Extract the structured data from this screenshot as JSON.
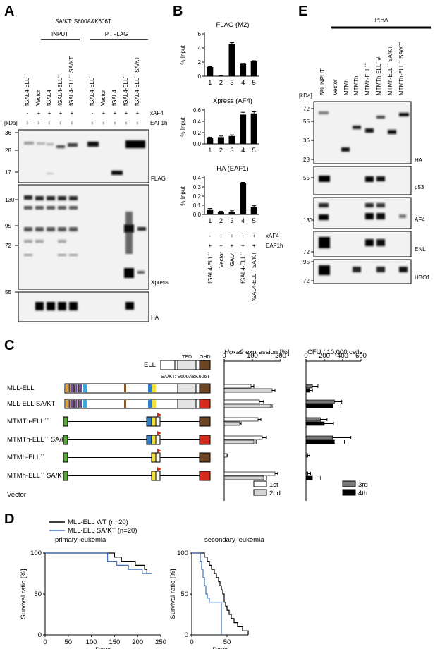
{
  "panels": {
    "A": "A",
    "B": "B",
    "C": "C",
    "D": "D",
    "E": "E"
  },
  "panelA": {
    "title": "SA/KT: S600A&K606T",
    "input_label": "INPUT",
    "ip_label": "IP : FLAG",
    "lanes": [
      "fGAL4-ELLˊˊ",
      "Vector",
      "fGAL4",
      "fGAL4-ELLˊˊ",
      "fGAL4-ELLˊˊ SA/KT"
    ],
    "row_xaf4": [
      "-",
      "+",
      "+",
      "+",
      "+"
    ],
    "row_eaf1h": [
      "+",
      "+",
      "+",
      "+",
      "+"
    ],
    "row_label_xaf4": "xAF4",
    "row_label_eaf1h": "EAF1h",
    "kda": "[kDa]",
    "markers": [
      "36",
      "28",
      "17",
      "130",
      "95",
      "72",
      "55"
    ],
    "blot_labels": [
      "FLAG",
      "Xpress",
      "HA"
    ]
  },
  "panelB": {
    "charts_titles": [
      "FLAG (M2)",
      "Xpress (AF4)",
      "HA (EAF1)"
    ],
    "ylabel": "% Input",
    "row_label_xaf4": "xAF4",
    "row_label_eaf1h": "EAF1h",
    "row_xaf4": [
      "-",
      "+",
      "+",
      "+",
      "+"
    ],
    "row_eaf1h": [
      "+",
      "+",
      "+",
      "+",
      "+"
    ],
    "lane_names": [
      "fGAL4-ELLˊˊ",
      "Vector",
      "fGAL4",
      "fGAL4-ELLˊˊ",
      "fGAL4-ELLˊˊ SA/KT"
    ]
  },
  "chart_data": [
    {
      "type": "bar",
      "title": "FLAG (M2)",
      "ylabel": "% Input",
      "categories": [
        "1",
        "2",
        "3",
        "4",
        "5"
      ],
      "values": [
        1.3,
        0.05,
        4.6,
        1.75,
        2.1
      ],
      "errors": [
        0.05,
        0.02,
        0.15,
        0.08,
        0.1
      ],
      "ylim": [
        0,
        6
      ],
      "yticks": [
        "0",
        "2",
        "4",
        "6"
      ]
    },
    {
      "type": "bar",
      "title": "Xpress (AF4)",
      "ylabel": "% Input",
      "categories": [
        "1",
        "2",
        "3",
        "4",
        "5"
      ],
      "values": [
        0.1,
        0.12,
        0.14,
        0.52,
        0.54
      ],
      "errors": [
        0.02,
        0.02,
        0.02,
        0.04,
        0.03
      ],
      "ylim": [
        0,
        0.6
      ],
      "yticks": [
        "0.0",
        "0.2",
        "0.4",
        "0.6"
      ]
    },
    {
      "type": "bar",
      "title": "HA (EAF1)",
      "ylabel": "% Input",
      "categories": [
        "1",
        "2",
        "3",
        "4",
        "5"
      ],
      "values": [
        0.055,
        0.025,
        0.03,
        0.34,
        0.08
      ],
      "errors": [
        0.01,
        0.01,
        0.01,
        0.01,
        0.015
      ],
      "ylim": [
        0,
        0.4
      ],
      "yticks": [
        "0.0",
        "0.1",
        "0.2",
        "0.3",
        "0.4"
      ]
    },
    {
      "type": "bar",
      "title": "Hoxa9 expression [%]",
      "orientation": "horizontal",
      "categories": [
        "MLL-ELL",
        "MLL-ELL SA/KT",
        "MTMTh-ELLˊˊ",
        "MTMTh-ELLˊˊ SA/KT",
        "MTMh-ELLˊˊ",
        "MTMh-ELLˊˊ SA/KT",
        "Vector"
      ],
      "series": [
        {
          "name": "1st",
          "values": [
            95,
            125,
            120,
            135,
            10,
            180,
            0
          ],
          "errors": [
            10,
            15,
            10,
            15,
            3,
            10,
            0
          ]
        },
        {
          "name": "2nd",
          "values": [
            170,
            165,
            55,
            105,
            0,
            140,
            0
          ],
          "errors": [
            10,
            5,
            5,
            8,
            0,
            10,
            0
          ]
        }
      ],
      "xlim": [
        0,
        200
      ],
      "xticks": [
        "0",
        "100",
        "200"
      ],
      "legend": "bottom-right"
    },
    {
      "type": "bar",
      "title": "CFU / 10,000 cells",
      "orientation": "horizontal",
      "categories": [
        "MLL-ELL",
        "MLL-ELL SA/KT",
        "MTMTh-ELLˊˊ",
        "MTMTh-ELLˊˊ SA/KT",
        "MTMh-ELLˊˊ",
        "MTMh-ELLˊˊ SA/KT",
        "Vector"
      ],
      "series": [
        {
          "name": "3rd",
          "values": [
            70,
            310,
            160,
            290,
            20,
            20,
            0
          ],
          "errors": [
            60,
            80,
            70,
            200,
            20,
            30,
            0
          ]
        },
        {
          "name": "4th",
          "values": [
            40,
            290,
            200,
            310,
            0,
            70,
            0
          ],
          "errors": [
            30,
            90,
            100,
            110,
            0,
            90,
            0
          ]
        }
      ],
      "xlim": [
        0,
        600
      ],
      "xticks": [
        "0",
        "200",
        "400",
        "600"
      ],
      "legend": "bottom-right"
    },
    {
      "type": "line",
      "title": "primary leukemia",
      "xlabel": "Days",
      "ylabel": "Survival ratio [%]",
      "xlim": [
        0,
        250
      ],
      "ylim": [
        0,
        100
      ],
      "xticks": [
        "0",
        "50",
        "100",
        "150",
        "200",
        "250"
      ],
      "yticks": [
        "0",
        "50",
        "100"
      ],
      "series": [
        {
          "name": "MLL-ELL WT (n=20)",
          "x": [
            0,
            145,
            150,
            160,
            165,
            190,
            195,
            210,
            215,
            220,
            230
          ],
          "y": [
            100,
            100,
            95,
            95,
            90,
            90,
            85,
            85,
            80,
            75,
            75
          ]
        },
        {
          "name": "MLL-ELL SA/KT (n=20)",
          "x": [
            0,
            130,
            135,
            150,
            155,
            175,
            180,
            200,
            210,
            230
          ],
          "y": [
            100,
            100,
            90,
            90,
            85,
            85,
            80,
            80,
            75,
            75
          ]
        }
      ]
    },
    {
      "type": "line",
      "title": "secondary leukemia",
      "xlabel": "Days",
      "ylabel": "Survival ratio [%]",
      "xlim": [
        0,
        80
      ],
      "ylim": [
        0,
        100
      ],
      "xticks": [
        "0",
        "50"
      ],
      "yticks": [
        "0",
        "50",
        "100"
      ],
      "series": [
        {
          "name": "MLL-ELL WT (n=20)",
          "x": [
            0,
            15,
            18,
            22,
            25,
            28,
            32,
            35,
            38,
            40,
            42,
            44,
            46,
            48,
            50,
            53,
            56,
            60,
            65,
            72,
            80
          ],
          "y": [
            100,
            100,
            95,
            90,
            85,
            80,
            75,
            70,
            65,
            60,
            55,
            50,
            40,
            35,
            30,
            25,
            20,
            15,
            10,
            5,
            0
          ]
        },
        {
          "name": "MLL-ELL SA/KT (n=20)",
          "x": [
            0,
            10,
            12,
            14,
            16,
            18,
            20,
            22,
            25,
            30,
            35,
            40,
            42
          ],
          "y": [
            100,
            100,
            90,
            80,
            70,
            60,
            50,
            45,
            40,
            40,
            40,
            40,
            0
          ]
        }
      ]
    }
  ],
  "panelC": {
    "ell_label": "ELL",
    "ted": "TED",
    "ohd": "OHD",
    "sakt_note": "SA/KT: S600A&K606T",
    "constructs": [
      "MLL-ELL",
      "MLL-ELL SA/KT",
      "MTMTh-ELLˊˊ",
      "MTMTh-ELLˊˊ SA/KT",
      "MTMh-ELLˊˊ",
      "MTMh-ELLˊˊ SA/KT",
      "Vector"
    ],
    "hoxa_title_italic": "Hoxa9",
    "hoxa_title_rest": " expression [%]",
    "cfu_title": "CFU / 10,000 cells",
    "colors": {
      "first": "#ffffff",
      "second": "#d4d4d4",
      "third": "#777777",
      "fourth": "#000000",
      "green": "#5aa83a",
      "brown": "#6b4424",
      "red": "#d42a1e",
      "blue": "#2f7fc4",
      "yellow": "#f2e23a"
    }
  },
  "panelD": {
    "legend": [
      "MLL-ELL WT (n=20)",
      "MLL-ELL SA/KT (n=20)"
    ],
    "colors": {
      "wt": "#000000",
      "sakt": "#3f6fbf"
    }
  },
  "panelE": {
    "ip_label": "IP:HA",
    "lanes": [
      "5% INPUT",
      "Vector",
      "MTMh",
      "MTMTh",
      "MTMh-ELLˊˊ",
      "MTMTh-ELLˊˊ#",
      "MTMh-ELLˊˊ SA/KT",
      "MTMTh-ELLˊˊ SA/KT"
    ],
    "kda": "[kDa]",
    "markers": [
      "72",
      "55",
      "36",
      "28",
      "55",
      "130",
      "72",
      "95",
      "72"
    ],
    "blot_labels": [
      "HA",
      "p53",
      "AF4",
      "ENL",
      "HBO1"
    ]
  }
}
